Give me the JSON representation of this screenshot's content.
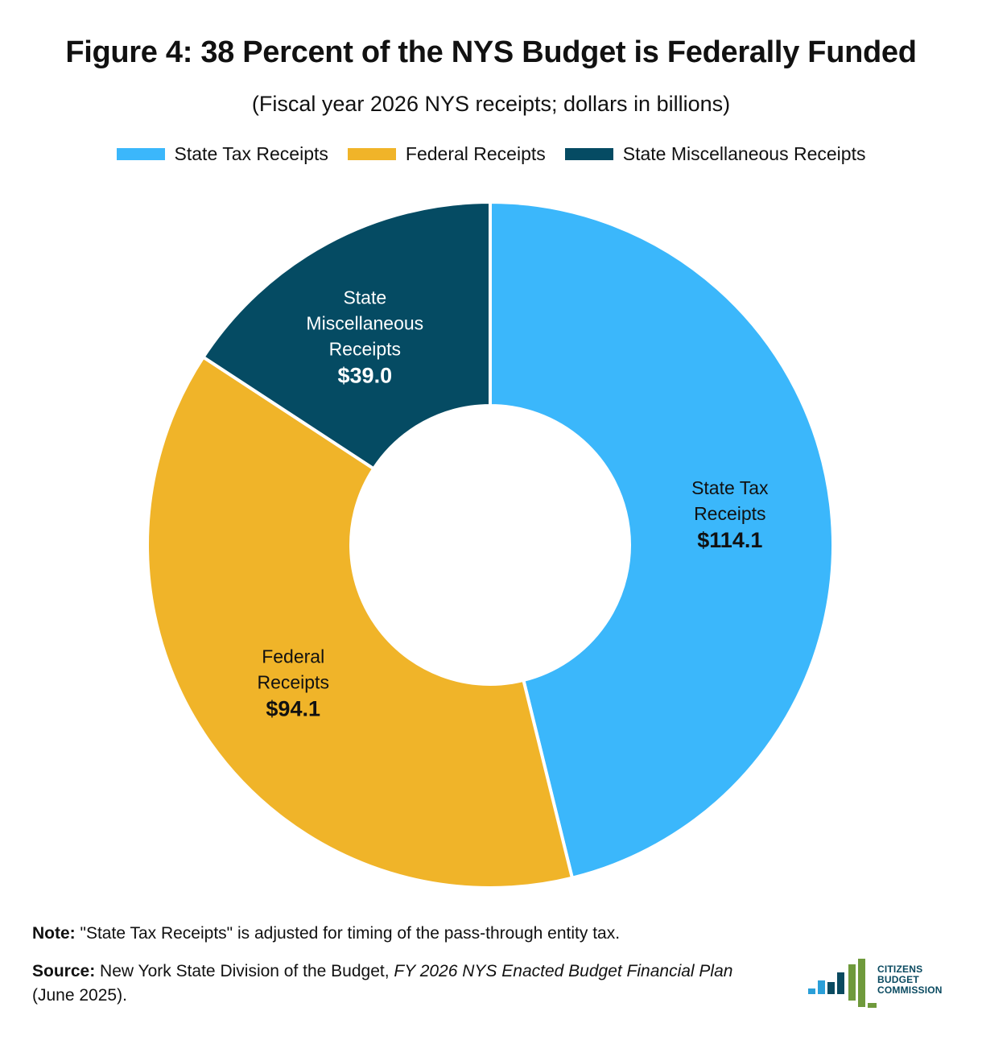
{
  "title": "Figure 4: 38 Percent of the NYS Budget is Federally Funded",
  "subtitle": "(Fiscal year 2026 NYS receipts; dollars in billions)",
  "colors": {
    "state_tax": "#3bb7fb",
    "federal": "#f0b429",
    "state_misc": "#054b63"
  },
  "chart_data": {
    "type": "pie",
    "variant": "donut",
    "title": "Figure 4: 38 Percent of the NYS Budget is Federally Funded",
    "subtitle": "(Fiscal year 2026 NYS receipts; dollars in billions)",
    "legend": [
      "State Tax Receipts",
      "Federal Receipts",
      "State Miscellaneous Receipts"
    ],
    "legend_position": "top",
    "slices": [
      {
        "name": "State Tax Receipts",
        "label_lines": [
          "State Tax",
          "Receipts"
        ],
        "value": 114.1,
        "value_label": "$114.1",
        "color": "#3bb7fb"
      },
      {
        "name": "Federal Receipts",
        "label_lines": [
          "Federal",
          "Receipts"
        ],
        "value": 94.1,
        "value_label": "$94.1",
        "color": "#f0b429"
      },
      {
        "name": "State Miscellaneous Receipts",
        "label_lines": [
          "State",
          "Miscellaneous",
          "Receipts"
        ],
        "value": 39.0,
        "value_label": "$39.0",
        "color": "#054b63"
      }
    ]
  },
  "note": {
    "label": "Note:",
    "text": " \"State Tax Receipts\" is adjusted for timing of the pass-through entity tax."
  },
  "source": {
    "label": "Source:",
    "text_before": " New York State Division of the Budget, ",
    "italic": "FY 2026 NYS Enacted Budget Financial Plan",
    "text_after": " (June 2025)."
  },
  "logo": {
    "line1": "CITIZENS",
    "line2": "BUDGET",
    "line3": "COMMISSION"
  }
}
